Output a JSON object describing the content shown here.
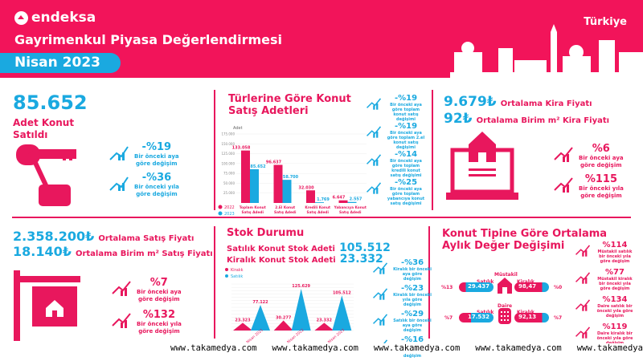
{
  "header": {
    "brand": "endeksa",
    "title": "Gayrimenkul Piyasa Değerlendirmesi",
    "period": "Nisan 2023",
    "country": "Türkiye"
  },
  "colors": {
    "pink": "#e8175d",
    "blue": "#1aa9e0"
  },
  "sales": {
    "value": "85.652",
    "label1": "Adet Konut",
    "label2": "Satıldı",
    "icon": "key-icon",
    "changes": [
      {
        "value": "-%19",
        "desc1": "Bir önceki aya",
        "desc2": "göre değişim"
      },
      {
        "value": "-%36",
        "desc1": "Bir önceki yıla",
        "desc2": "göre değişim"
      }
    ]
  },
  "types": {
    "title1": "Türlerine Göre Konut",
    "title2": "Satış Adetleri",
    "changes": [
      {
        "value": "-%19",
        "desc": "Bir önceki aya göre toplam konut satış değişimi"
      },
      {
        "value": "-%19",
        "desc": "Bir önceki aya göre toplam 2.el konut satış değişimi"
      },
      {
        "value": "-%14",
        "desc": "Bir önceki aya göre toplam kredili konut satış değişimi"
      },
      {
        "value": "-%25",
        "desc": "Bir önceki aya göre toplam yabancıya konut satış değişimi"
      }
    ]
  },
  "chart_data": [
    {
      "type": "bar",
      "title": "Türlerine Göre Konut Satış Adetleri",
      "ylabel": "Adet",
      "ylim": [
        0,
        175000
      ],
      "yticks": [
        "175.000",
        "150.000",
        "125.000",
        "100.000",
        "75.000",
        "50.000",
        "25.000"
      ],
      "categories": [
        "Toplam Konut Satış Adedi",
        "2.El Konut Satış Adedi",
        "Kredili Konut Satış Adedi",
        "Yabancıya Konut Satış Adedi"
      ],
      "series": [
        {
          "name": "2022",
          "values": [
            133058,
            96637,
            32030,
            6647
          ],
          "labels": [
            "133.058",
            "96.637",
            "32.030",
            "6.647"
          ]
        },
        {
          "name": "2023",
          "values": [
            85652,
            58700,
            1769,
            2557
          ],
          "labels": [
            "85.652",
            "58.700",
            "1.769",
            "2.557"
          ]
        }
      ]
    },
    {
      "type": "area",
      "title": "Stok Durumu",
      "ylim": [
        0,
        140000
      ],
      "categories": [
        "Nisan 2021",
        "Nisan 2022",
        "Nisan 2023"
      ],
      "series": [
        {
          "name": "Kiralık",
          "values": [
            23323,
            30277,
            23332
          ],
          "labels": [
            "23.323",
            "30.277",
            "23.332"
          ]
        },
        {
          "name": "Satılık",
          "values": [
            77122,
            125629,
            105512
          ],
          "labels": [
            "77.122",
            "125.629",
            "105.512"
          ]
        }
      ]
    }
  ],
  "rent": {
    "price": "9.679₺",
    "price_label": "Ortalama Kira Fiyatı",
    "unit": "92₺",
    "unit_label": "Ortalama Birim m² Kira Fiyatı",
    "changes": [
      {
        "value": "%6",
        "desc1": "Bir önceki aya",
        "desc2": "göre değişim"
      },
      {
        "value": "%115",
        "desc1": "Bir önceki yıla",
        "desc2": "göre değişim"
      }
    ]
  },
  "sale_price": {
    "price": "2.358.200₺",
    "price_label": "Ortalama Satış Fiyatı",
    "unit": "18.140₺",
    "unit_label": "Ortalama Birim m² Satış Fiyatı",
    "changes": [
      {
        "value": "%7",
        "desc1": "Bir önceki aya",
        "desc2": "göre değişim"
      },
      {
        "value": "%132",
        "desc1": "Bir önceki yıla",
        "desc2": "göre değişim"
      }
    ]
  },
  "stock": {
    "title": "Stok Durumu",
    "sale_label": "Satılık Konut Stok Adeti",
    "sale_value": "105.512",
    "rent_label": "Kiralık Konut Stok Adeti",
    "rent_value": "23.332",
    "changes": [
      {
        "value": "-%36",
        "desc": "Kiralık bir önceki aya göre değişim"
      },
      {
        "value": "-%23",
        "desc": "Kiralık bir önceki yıla göre değişim"
      },
      {
        "value": "-%29",
        "desc": "Satılık bir önceki aya göre değişim"
      },
      {
        "value": "-%16",
        "desc": "Satılık bir önceki yıla göre değişim"
      }
    ]
  },
  "value_change": {
    "title1": "Konut Tipine Göre Ortalama",
    "title2": "Aylık Değer Değişimi",
    "mustakil": {
      "label": "Müstakil",
      "sale_label": "Satılık",
      "sale_value": "29.437",
      "sale_pct": "%13",
      "rent_label": "Kiralık",
      "rent_value": "98,47",
      "rent_pct": "%0"
    },
    "daire": {
      "label": "Daire",
      "sale_label": "Satılık",
      "sale_value": "17.532",
      "sale_pct": "%7",
      "rent_label": "Kiralık",
      "rent_value": "92,13",
      "rent_pct": "%7"
    },
    "changes": [
      {
        "value": "%114",
        "desc": "Müstakil satılık bir önceki yıla göre değişim"
      },
      {
        "value": "%77",
        "desc": "Müstakil kiralık bir önceki yıla göre değişim"
      },
      {
        "value": "%134",
        "desc": "Daire satılık bir önceki yıla göre değişim"
      },
      {
        "value": "%119",
        "desc": "Daire kiralık bir önceki yıla göre değişim"
      }
    ]
  },
  "watermark": "www.takamedya.com   www.takamedya.com   www.takamedya.com   www.takamedya.com   www.takamedya.com"
}
